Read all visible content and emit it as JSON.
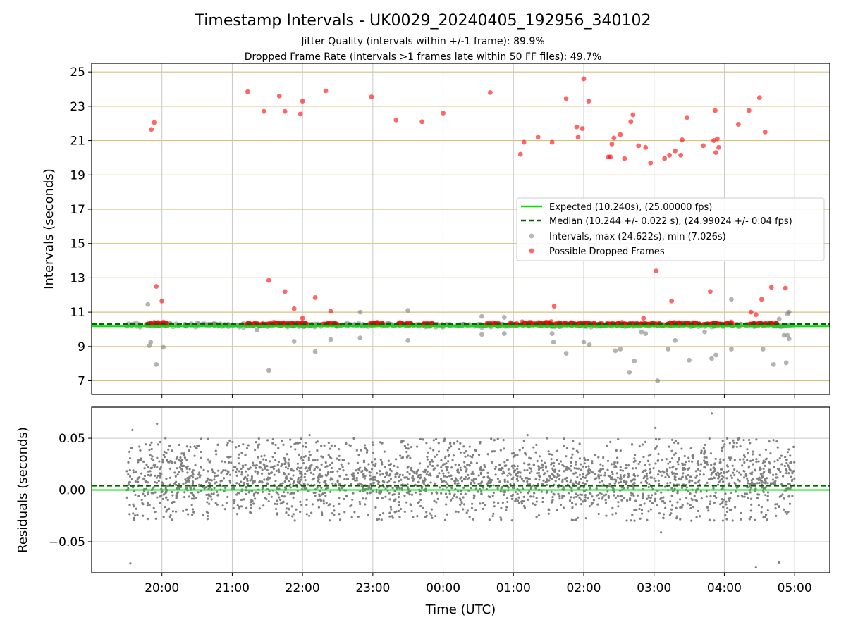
{
  "chart_data": [
    {
      "type": "scatter",
      "panel": "intervals",
      "title": "Timestamp Intervals - UK0029_20240405_192956_340102",
      "subtitle_lines": [
        "Jitter Quality (intervals within +/-1 frame): 89.9%",
        "Dropped Frame Rate (intervals >1 frames late within 50 FF files): 49.7%"
      ],
      "ylabel": "Intervals (seconds)",
      "xlim_hours": [
        19.0,
        29.5
      ],
      "ylim": [
        6.2,
        25.5
      ],
      "y_ticks": [
        7,
        9,
        11,
        13,
        15,
        17,
        19,
        21,
        23,
        25
      ],
      "grid": true,
      "legend_position": "center-right",
      "expected_interval": 10.24,
      "median_interval": 10.244,
      "colors": {
        "expected": "#00e600",
        "median": "#006400",
        "intervals": "#808080",
        "dropped": "#ff0000",
        "h_grid": "#d8c080",
        "v_grid": "#c8c8c8"
      },
      "legend": [
        {
          "label": "Expected (10.240s), (25.00000 fps)",
          "marker": "line-solid",
          "color": "#00e600"
        },
        {
          "label": "Median (10.244 +/- 0.022 s), (24.99024 +/- 0.04 fps)",
          "marker": "line-dashed",
          "color": "#006400"
        },
        {
          "label": "Intervals, max (24.622s), min (7.026s)",
          "marker": "dot",
          "color": "#808080"
        },
        {
          "label": "Possible Dropped Frames",
          "marker": "dot",
          "color": "#ff0000"
        }
      ],
      "dropped_frames": [
        {
          "x": 19.85,
          "y": 21.65
        },
        {
          "x": 19.89,
          "y": 22.05
        },
        {
          "x": 19.92,
          "y": 12.5
        },
        {
          "x": 20.0,
          "y": 11.65
        },
        {
          "x": 21.22,
          "y": 23.85
        },
        {
          "x": 21.45,
          "y": 22.7
        },
        {
          "x": 21.52,
          "y": 12.85
        },
        {
          "x": 21.67,
          "y": 23.6
        },
        {
          "x": 21.75,
          "y": 22.7
        },
        {
          "x": 21.75,
          "y": 12.2
        },
        {
          "x": 21.88,
          "y": 11.2
        },
        {
          "x": 21.97,
          "y": 22.55
        },
        {
          "x": 22.0,
          "y": 23.3
        },
        {
          "x": 22.0,
          "y": 10.65
        },
        {
          "x": 22.18,
          "y": 11.85
        },
        {
          "x": 22.33,
          "y": 23.9
        },
        {
          "x": 22.4,
          "y": 11.05
        },
        {
          "x": 22.98,
          "y": 23.55
        },
        {
          "x": 23.33,
          "y": 22.2
        },
        {
          "x": 23.7,
          "y": 22.1
        },
        {
          "x": 24.0,
          "y": 22.6
        },
        {
          "x": 24.67,
          "y": 23.8
        },
        {
          "x": 25.1,
          "y": 20.2
        },
        {
          "x": 25.15,
          "y": 20.9
        },
        {
          "x": 25.35,
          "y": 21.2
        },
        {
          "x": 25.55,
          "y": 20.9
        },
        {
          "x": 25.58,
          "y": 11.35
        },
        {
          "x": 25.75,
          "y": 23.45
        },
        {
          "x": 25.9,
          "y": 21.8
        },
        {
          "x": 25.92,
          "y": 21.2
        },
        {
          "x": 25.98,
          "y": 21.7
        },
        {
          "x": 26.0,
          "y": 24.6
        },
        {
          "x": 26.07,
          "y": 23.3
        },
        {
          "x": 26.35,
          "y": 20.05
        },
        {
          "x": 26.38,
          "y": 20.05
        },
        {
          "x": 26.4,
          "y": 20.8
        },
        {
          "x": 26.43,
          "y": 21.15
        },
        {
          "x": 26.52,
          "y": 21.35
        },
        {
          "x": 26.58,
          "y": 19.95
        },
        {
          "x": 26.67,
          "y": 22.1
        },
        {
          "x": 26.7,
          "y": 22.5
        },
        {
          "x": 26.78,
          "y": 20.7
        },
        {
          "x": 26.85,
          "y": 10.65
        },
        {
          "x": 26.88,
          "y": 20.6
        },
        {
          "x": 26.95,
          "y": 19.7
        },
        {
          "x": 27.03,
          "y": 13.4
        },
        {
          "x": 27.15,
          "y": 19.95
        },
        {
          "x": 27.22,
          "y": 20.15
        },
        {
          "x": 27.25,
          "y": 11.65
        },
        {
          "x": 27.3,
          "y": 20.4
        },
        {
          "x": 27.38,
          "y": 20.15
        },
        {
          "x": 27.4,
          "y": 21.05
        },
        {
          "x": 27.47,
          "y": 22.35
        },
        {
          "x": 27.7,
          "y": 20.7
        },
        {
          "x": 27.8,
          "y": 12.2
        },
        {
          "x": 27.85,
          "y": 21.0
        },
        {
          "x": 27.87,
          "y": 22.75
        },
        {
          "x": 27.88,
          "y": 20.3
        },
        {
          "x": 27.9,
          "y": 21.1
        },
        {
          "x": 27.92,
          "y": 20.6
        },
        {
          "x": 28.2,
          "y": 21.95
        },
        {
          "x": 28.35,
          "y": 22.75
        },
        {
          "x": 28.38,
          "y": 11.0
        },
        {
          "x": 28.45,
          "y": 10.85
        },
        {
          "x": 28.5,
          "y": 23.5
        },
        {
          "x": 28.53,
          "y": 11.75
        },
        {
          "x": 28.58,
          "y": 21.5
        },
        {
          "x": 28.67,
          "y": 12.45
        },
        {
          "x": 28.87,
          "y": 12.4
        }
      ],
      "dropped_bands_near_expected": [
        [
          19.78,
          20.08
        ],
        [
          21.2,
          21.75
        ],
        [
          21.75,
          22.05
        ],
        [
          22.3,
          22.5
        ],
        [
          22.95,
          23.15
        ],
        [
          23.35,
          23.55
        ],
        [
          23.7,
          23.85
        ],
        [
          24.6,
          24.8
        ],
        [
          24.95,
          25.05
        ],
        [
          25.12,
          25.68
        ],
        [
          25.72,
          26.28
        ],
        [
          26.32,
          27.1
        ],
        [
          27.18,
          27.52
        ],
        [
          27.55,
          27.65
        ],
        [
          27.7,
          28.12
        ],
        [
          28.35,
          28.75
        ]
      ],
      "gray_outliers": [
        {
          "x": 19.8,
          "y": 11.45
        },
        {
          "x": 19.82,
          "y": 9.05
        },
        {
          "x": 19.84,
          "y": 9.25
        },
        {
          "x": 19.92,
          "y": 7.95
        },
        {
          "x": 20.02,
          "y": 8.95
        },
        {
          "x": 21.35,
          "y": 9.95
        },
        {
          "x": 21.52,
          "y": 7.6
        },
        {
          "x": 21.88,
          "y": 9.3
        },
        {
          "x": 22.18,
          "y": 8.7
        },
        {
          "x": 22.4,
          "y": 9.4
        },
        {
          "x": 22.82,
          "y": 9.5
        },
        {
          "x": 22.82,
          "y": 11.0
        },
        {
          "x": 23.5,
          "y": 9.35
        },
        {
          "x": 23.5,
          "y": 11.1
        },
        {
          "x": 24.55,
          "y": 9.7
        },
        {
          "x": 24.55,
          "y": 10.75
        },
        {
          "x": 24.87,
          "y": 9.75
        },
        {
          "x": 24.87,
          "y": 10.7
        },
        {
          "x": 25.55,
          "y": 9.75
        },
        {
          "x": 25.57,
          "y": 9.25
        },
        {
          "x": 25.75,
          "y": 8.6
        },
        {
          "x": 26.0,
          "y": 9.25
        },
        {
          "x": 26.08,
          "y": 9.1
        },
        {
          "x": 26.45,
          "y": 8.75
        },
        {
          "x": 26.52,
          "y": 8.85
        },
        {
          "x": 26.65,
          "y": 7.5
        },
        {
          "x": 26.72,
          "y": 8.15
        },
        {
          "x": 26.82,
          "y": 9.85
        },
        {
          "x": 26.88,
          "y": 9.75
        },
        {
          "x": 27.05,
          "y": 7.0
        },
        {
          "x": 27.2,
          "y": 8.85
        },
        {
          "x": 27.3,
          "y": 9.35
        },
        {
          "x": 27.5,
          "y": 8.2
        },
        {
          "x": 27.72,
          "y": 9.85
        },
        {
          "x": 27.82,
          "y": 8.3
        },
        {
          "x": 27.88,
          "y": 8.5
        },
        {
          "x": 28.1,
          "y": 8.85
        },
        {
          "x": 28.1,
          "y": 11.75
        },
        {
          "x": 28.55,
          "y": 8.85
        },
        {
          "x": 28.7,
          "y": 7.95
        },
        {
          "x": 28.78,
          "y": 10.6
        },
        {
          "x": 28.85,
          "y": 9.65
        },
        {
          "x": 28.88,
          "y": 8.05
        },
        {
          "x": 28.9,
          "y": 9.65
        },
        {
          "x": 28.92,
          "y": 9.45
        },
        {
          "x": 28.9,
          "y": 10.9
        },
        {
          "x": 28.92,
          "y": 11.0
        }
      ],
      "baseline_span_hours": [
        19.5,
        29.0
      ]
    },
    {
      "type": "scatter",
      "panel": "residuals",
      "xlabel": "Time (UTC)",
      "ylabel": "Residuals (seconds)",
      "xlim_hours": [
        19.0,
        29.5
      ],
      "ylim": [
        -0.08,
        0.08
      ],
      "y_ticks": [
        -0.05,
        0.0,
        0.05
      ],
      "y_tick_labels": [
        "−0.05",
        "0.00",
        "0.05"
      ],
      "x_ticks": [
        20,
        21,
        22,
        23,
        24,
        25,
        26,
        27,
        28,
        29
      ],
      "x_tick_labels": [
        "20:00",
        "21:00",
        "22:00",
        "23:00",
        "00:00",
        "01:00",
        "02:00",
        "03:00",
        "04:00",
        "05:00"
      ],
      "grid": true,
      "expected_residual": 0.0,
      "median_residual": 0.004,
      "residual_spread": [
        -0.03,
        0.05
      ],
      "outliers": [
        {
          "x": 19.55,
          "y": -0.071
        },
        {
          "x": 19.58,
          "y": 0.058
        },
        {
          "x": 19.93,
          "y": 0.064
        },
        {
          "x": 27.02,
          "y": 0.06
        },
        {
          "x": 27.1,
          "y": -0.041
        },
        {
          "x": 27.82,
          "y": 0.074
        },
        {
          "x": 28.45,
          "y": -0.075
        },
        {
          "x": 28.78,
          "y": -0.07
        },
        {
          "x": 20.05,
          "y": 0.05
        },
        {
          "x": 23.9,
          "y": 0.049
        },
        {
          "x": 25.2,
          "y": 0.053
        },
        {
          "x": 22.1,
          "y": 0.053
        }
      ]
    }
  ]
}
